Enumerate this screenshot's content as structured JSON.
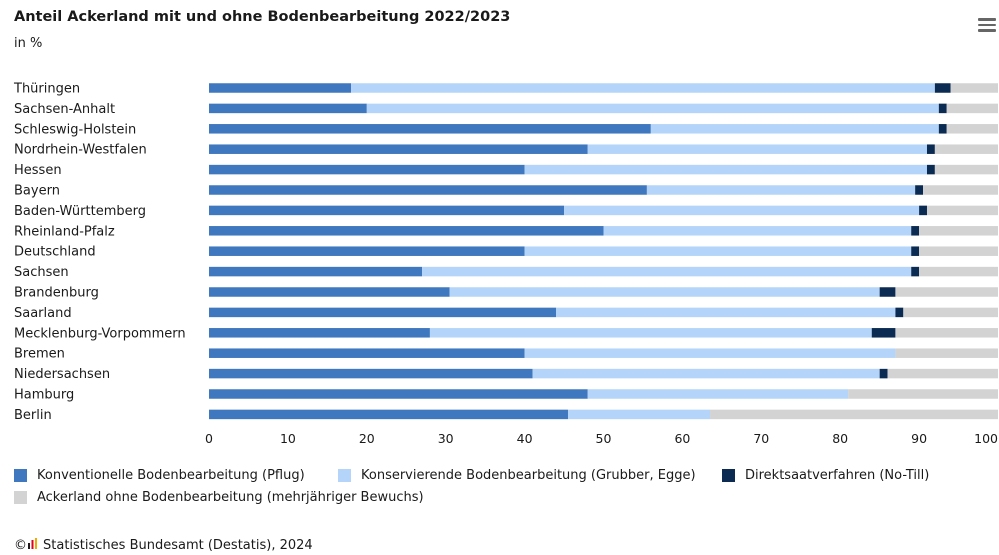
{
  "header": {
    "title": "Anteil Ackerland mit und ohne Bodenbearbeitung 2022/2023",
    "subtitle": "in %"
  },
  "menu": {
    "icon": "hamburger-menu-icon"
  },
  "colors": {
    "konventionell": "#3f78be",
    "konservierend": "#b4d5f9",
    "direktsaat": "#0b2b52",
    "ohne": "#d3d3d3"
  },
  "chart_data": {
    "type": "bar",
    "orientation": "horizontal",
    "stacked": true,
    "title": "Anteil Ackerland mit und ohne Bodenbearbeitung 2022/2023",
    "subtitle": "in %",
    "categories": [
      "Thüringen",
      "Sachsen-Anhalt",
      "Schleswig-Holstein",
      "Nordrhein-Westfalen",
      "Hessen",
      "Bayern",
      "Baden-Württemberg",
      "Rheinland-Pfalz",
      "Deutschland",
      "Sachsen",
      "Brandenburg",
      "Saarland",
      "Mecklenburg-Vorpommern",
      "Bremen",
      "Niedersachsen",
      "Hamburg",
      "Berlin"
    ],
    "series": [
      {
        "name": "Konventionelle Bodenbearbeitung (Pflug)",
        "color": "#3f78be",
        "values": [
          18,
          20,
          56,
          48,
          40,
          55.5,
          45,
          50,
          40,
          27,
          30.5,
          44,
          28,
          40,
          41,
          48,
          45.5
        ]
      },
      {
        "name": "Konservierende Bodenbearbeitung (Grubber, Egge)",
        "color": "#b4d5f9",
        "values": [
          74,
          72.5,
          36.5,
          43,
          51,
          34,
          45,
          39,
          49,
          62,
          54.5,
          43,
          56,
          47,
          44,
          33,
          18
        ]
      },
      {
        "name": "Direktsaatverfahren (No-Till)",
        "color": "#0b2b52",
        "values": [
          2,
          1,
          1,
          1,
          1,
          1,
          1,
          1,
          1,
          1,
          2,
          1,
          3,
          0,
          1,
          0,
          0
        ]
      },
      {
        "name": "Ackerland ohne Bodenbearbeitung (mehrjähriger Bewuchs)",
        "color": "#d3d3d3",
        "values": [
          6,
          6.5,
          6.5,
          8,
          8,
          9.5,
          9,
          10,
          10,
          10,
          13,
          12,
          13,
          13,
          14,
          19,
          36.5
        ]
      }
    ],
    "xlim": [
      0,
      100
    ],
    "xticks": [
      "0",
      "10",
      "20",
      "30",
      "40",
      "50",
      "60",
      "70",
      "80",
      "90",
      "100"
    ],
    "grid": false,
    "legend_position": "bottom"
  },
  "credit": {
    "copyright": "©",
    "logo_icon": "destatis-logo-icon",
    "text": "Statistisches Bundesamt (Destatis), 2024"
  }
}
